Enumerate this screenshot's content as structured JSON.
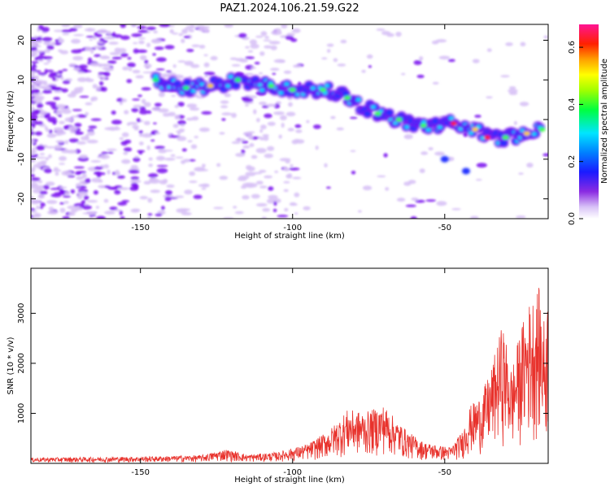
{
  "figure_title": "PAZ1.2024.106.21.59.G22",
  "colors": {
    "snr_line": "#e8322c",
    "ridge_core": "#ff1a1a",
    "ridge_mid": "#00e0ff",
    "ridge_outer": "#2230ff",
    "speckle_dark": "#7a10ee",
    "speckle_light": "#d8c2f6"
  },
  "chart_data": [
    {
      "type": "heatmap",
      "title": "",
      "xlabel": "Height of straight line (km)",
      "ylabel": "Frequency (Hz)",
      "xlim": [
        -186,
        -16
      ],
      "ylim": [
        -25,
        24
      ],
      "x_ticks": [
        -150,
        -100,
        -50
      ],
      "y_ticks": [
        -20,
        -10,
        0,
        10,
        20
      ],
      "colorbar": {
        "label": "Normalized spectral amplitude",
        "range": [
          0,
          0.68
        ],
        "ticks": [
          0.0,
          0.2,
          0.4,
          0.6
        ],
        "colormap": "rainbow (white, violet, blue, cyan, green, yellow, orange, red, magenta)"
      },
      "ridge": {
        "description": "High-amplitude band whose frequency decreases with height",
        "points": [
          {
            "x": -145,
            "y": 10,
            "amp": 0.15
          },
          {
            "x": -135,
            "y": 8,
            "amp": 0.25
          },
          {
            "x": -127,
            "y": 8.5,
            "amp": 0.4
          },
          {
            "x": -118,
            "y": 10,
            "amp": 0.2
          },
          {
            "x": -107,
            "y": 8.5,
            "amp": 0.3
          },
          {
            "x": -100,
            "y": 7.5,
            "amp": 0.3
          },
          {
            "x": -90,
            "y": 7.5,
            "amp": 0.35
          },
          {
            "x": -82,
            "y": 5.5,
            "amp": 0.35
          },
          {
            "x": -72,
            "y": 1.5,
            "amp": 0.3
          },
          {
            "x": -65,
            "y": 0,
            "amp": 0.3
          },
          {
            "x": -57,
            "y": -1.5,
            "amp": 0.3
          },
          {
            "x": -47,
            "y": -1,
            "amp": 0.55
          },
          {
            "x": -40,
            "y": -2.5,
            "amp": 0.45
          },
          {
            "x": -36,
            "y": -4.5,
            "amp": 0.65
          },
          {
            "x": -30,
            "y": -4.5,
            "amp": 0.35
          },
          {
            "x": -23,
            "y": -3.5,
            "amp": 0.45
          },
          {
            "x": -18,
            "y": -2.5,
            "amp": 0.3
          }
        ]
      }
    },
    {
      "type": "line",
      "title": "",
      "xlabel": "Height of straight line (km)",
      "ylabel": "SNR (10 * v/v)",
      "xlim": [
        -186,
        -16
      ],
      "ylim": [
        0,
        3900
      ],
      "x_ticks": [
        -150,
        -100,
        -50
      ],
      "y_ticks": [
        1000,
        2000,
        3000
      ],
      "series": [
        {
          "envelope": {
            "x": [
              -186,
              -170,
              -150,
              -130,
              -122,
              -115,
              -105,
              -95,
              -88,
              -82,
              -76,
              -70,
              -66,
              -62,
              -57,
              -52,
              -48,
              -44,
              -42,
              -38,
              -35,
              -31,
              -28,
              -25,
              -22,
              -19,
              -17,
              -16
            ],
            "y": [
              110,
              120,
              130,
              160,
              280,
              170,
              220,
              380,
              650,
              1050,
              1000,
              1150,
              850,
              620,
              420,
              350,
              320,
              650,
              1100,
              1350,
              1800,
              2750,
              1850,
              2650,
              3200,
              3450,
              2700,
              3400
            ]
          }
        }
      ]
    }
  ]
}
